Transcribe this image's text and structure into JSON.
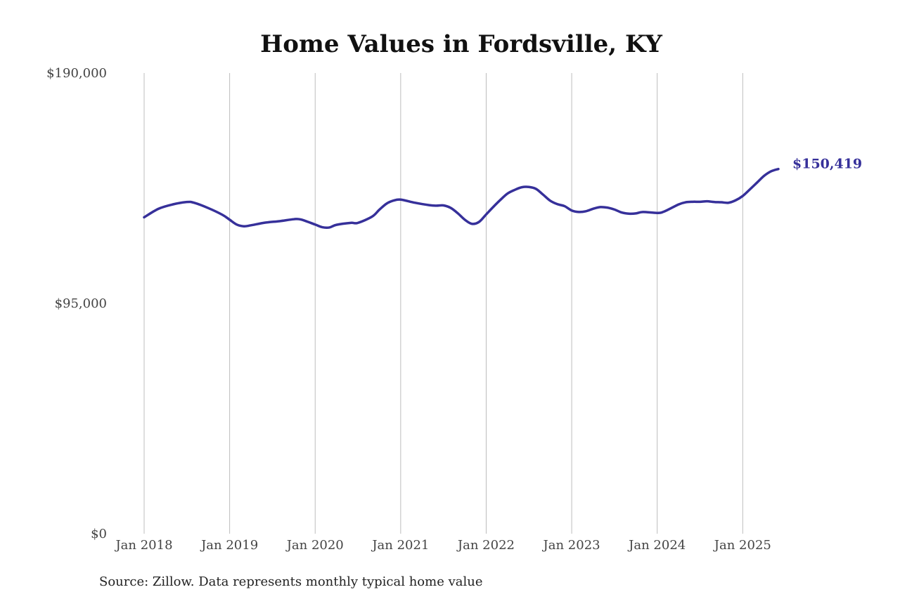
{
  "chart_data": {
    "type": "line",
    "title": "Home Values in Fordsville, KY",
    "source": "Source: Zillow. Data represents monthly typical home value",
    "xlabel": "",
    "ylabel": "",
    "xlim": [
      "2018-01",
      "2025-06"
    ],
    "ylim": [
      0,
      190000
    ],
    "grid": "vertical lines at January of each year",
    "line_color": "#36309a",
    "y_ticks": [
      {
        "value": 190000,
        "label": "$190,000"
      },
      {
        "value": 95000,
        "label": "$95,000"
      },
      {
        "value": 0,
        "label": "$0"
      }
    ],
    "x_ticks": [
      {
        "value": "2018-01",
        "label": "Jan 2018"
      },
      {
        "value": "2019-01",
        "label": "Jan 2019"
      },
      {
        "value": "2020-01",
        "label": "Jan 2020"
      },
      {
        "value": "2021-01",
        "label": "Jan 2021"
      },
      {
        "value": "2022-01",
        "label": "Jan 2022"
      },
      {
        "value": "2023-01",
        "label": "Jan 2023"
      },
      {
        "value": "2024-01",
        "label": "Jan 2024"
      },
      {
        "value": "2025-01",
        "label": "Jan 2025"
      }
    ],
    "end_label": "$150,419",
    "series": [
      {
        "x": [
          "2018-01",
          "2018-03",
          "2018-05",
          "2018-07",
          "2018-08",
          "2018-10",
          "2018-12",
          "2019-01",
          "2019-02",
          "2019-03",
          "2019-04",
          "2019-06",
          "2019-08",
          "2019-10",
          "2019-11",
          "2020-01",
          "2020-02",
          "2020-03",
          "2020-04",
          "2020-06",
          "2020-07",
          "2020-09",
          "2020-10",
          "2020-11",
          "2020-12",
          "2021-01",
          "2021-03",
          "2021-05",
          "2021-06",
          "2021-07",
          "2021-08",
          "2021-09",
          "2021-10",
          "2021-11",
          "2021-12",
          "2022-01",
          "2022-02",
          "2022-03",
          "2022-04",
          "2022-05",
          "2022-06",
          "2022-07",
          "2022-08",
          "2022-09",
          "2022-10",
          "2022-11",
          "2022-12",
          "2023-01",
          "2023-02",
          "2023-03",
          "2023-04",
          "2023-05",
          "2023-06",
          "2023-07",
          "2023-08",
          "2023-09",
          "2023-10",
          "2023-11",
          "2024-01",
          "2024-02",
          "2024-04",
          "2024-05",
          "2024-06",
          "2024-07",
          "2024-08",
          "2024-09",
          "2024-10",
          "2024-11",
          "2024-12",
          "2025-01",
          "2025-02",
          "2025-03",
          "2025-04",
          "2025-05",
          "2025-06"
        ],
        "values": [
          130500,
          134000,
          135800,
          136800,
          136500,
          134300,
          131500,
          129500,
          127500,
          126800,
          127200,
          128300,
          128900,
          129700,
          129600,
          127500,
          126400,
          126300,
          127400,
          128200,
          128200,
          130800,
          133600,
          136100,
          137400,
          137800,
          136500,
          135500,
          135300,
          135400,
          134400,
          132200,
          129500,
          127800,
          128600,
          131700,
          134800,
          137700,
          140300,
          141800,
          142900,
          143000,
          142200,
          139800,
          137300,
          135900,
          135100,
          133300,
          132700,
          133000,
          134000,
          134700,
          134500,
          133700,
          132500,
          132000,
          132100,
          132700,
          132300,
          132900,
          135800,
          136700,
          136900,
          136900,
          137100,
          136800,
          136700,
          136500,
          137500,
          139300,
          142000,
          144800,
          147600,
          149500,
          150419
        ]
      }
    ]
  }
}
